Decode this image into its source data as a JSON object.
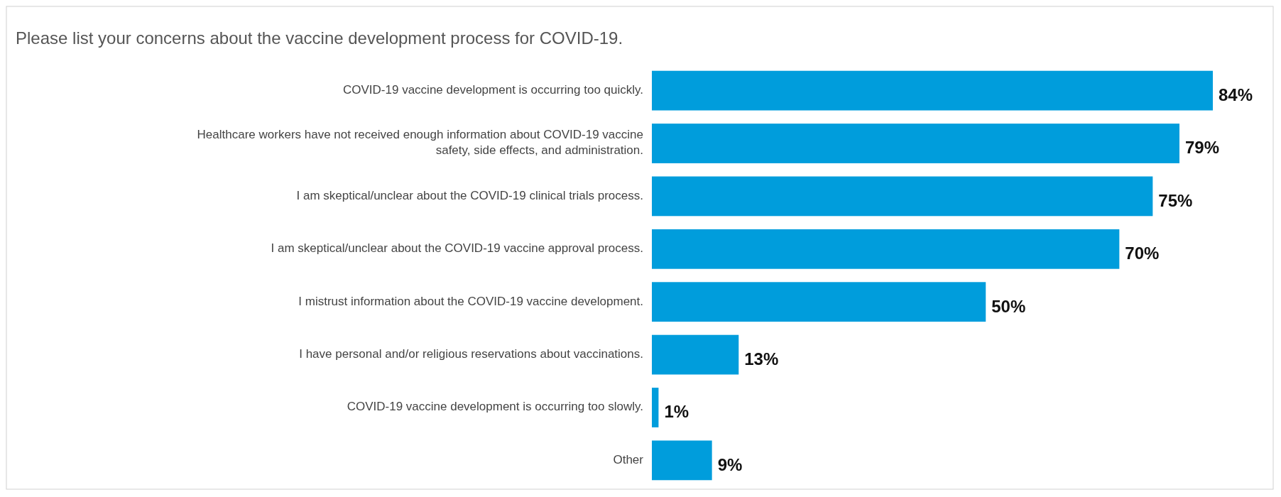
{
  "chart_data": {
    "type": "bar",
    "orientation": "horizontal",
    "title": "Please list your concerns about the vaccine development process for COVID-19.",
    "categories": [
      "COVID-19 vaccine development is occurring too quickly.",
      "Healthcare workers have not received enough information about COVID-19 vaccine safety, side effects, and administration.",
      "I am skeptical/unclear about the COVID-19 clinical trials process.",
      "I am skeptical/unclear about the COVID-19 vaccine approval process.",
      "I mistrust information about the COVID-19 vaccine development.",
      "I have personal and/or religious reservations about vaccinations.",
      "COVID-19 vaccine development is occurring too slowly.",
      "Other"
    ],
    "values": [
      84,
      79,
      75,
      70,
      50,
      13,
      1,
      9
    ],
    "value_labels": [
      "84%",
      "79%",
      "75%",
      "70%",
      "50%",
      "13%",
      "1%",
      "9%"
    ],
    "color": "#009ddc"
  }
}
